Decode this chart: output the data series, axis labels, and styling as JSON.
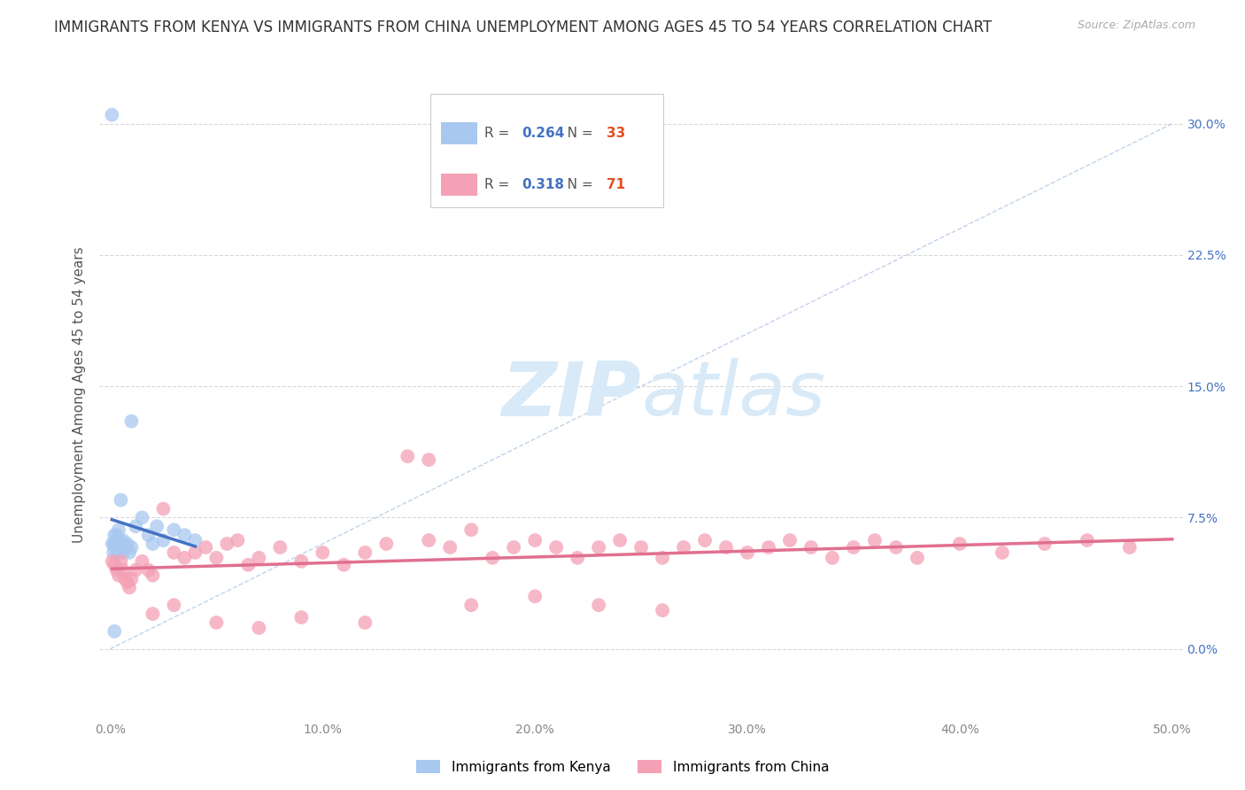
{
  "title": "IMMIGRANTS FROM KENYA VS IMMIGRANTS FROM CHINA UNEMPLOYMENT AMONG AGES 45 TO 54 YEARS CORRELATION CHART",
  "source": "Source: ZipAtlas.com",
  "ylabel": "Unemployment Among Ages 45 to 54 years",
  "xlim": [
    -0.005,
    0.505
  ],
  "ylim": [
    -0.04,
    0.33
  ],
  "xticks": [
    0.0,
    0.1,
    0.2,
    0.3,
    0.4,
    0.5
  ],
  "xticklabels": [
    "0.0%",
    "10.0%",
    "20.0%",
    "30.0%",
    "40.0%",
    "50.0%"
  ],
  "yticks": [
    0.0,
    0.075,
    0.15,
    0.225,
    0.3
  ],
  "yticklabels": [
    "0.0%",
    "7.5%",
    "15.0%",
    "22.5%",
    "30.0%"
  ],
  "kenya_R": 0.264,
  "kenya_N": 33,
  "china_R": 0.318,
  "china_N": 71,
  "kenya_color": "#a8c8f0",
  "kenya_line_color": "#4472c4",
  "china_color": "#f4a0b5",
  "china_line_color": "#e07090",
  "ref_line_color": "#b0c8e8",
  "tick_color_left": "#888888",
  "tick_color_right": "#4472c4",
  "background_color": "#ffffff",
  "grid_color": "#d8d8d8",
  "title_fontsize": 12,
  "axis_label_fontsize": 11,
  "tick_fontsize": 10,
  "legend_fontsize": 11,
  "watermark_color": "#d8eaf8",
  "kenya_x": [
    0.0008,
    0.001,
    0.0015,
    0.002,
    0.002,
    0.003,
    0.003,
    0.004,
    0.004,
    0.005,
    0.005,
    0.006,
    0.006,
    0.007,
    0.008,
    0.009,
    0.01,
    0.012,
    0.015,
    0.018,
    0.02,
    0.022,
    0.025,
    0.03,
    0.035,
    0.04,
    0.002,
    0.003,
    0.004,
    0.005,
    0.002,
    0.006,
    0.01
  ],
  "kenya_y": [
    0.305,
    0.06,
    0.055,
    0.06,
    0.01,
    0.065,
    0.058,
    0.062,
    0.068,
    0.085,
    0.058,
    0.055,
    0.062,
    0.058,
    0.06,
    0.055,
    0.13,
    0.07,
    0.075,
    0.065,
    0.06,
    0.07,
    0.062,
    0.068,
    0.065,
    0.062,
    0.06,
    0.055,
    0.06,
    0.06,
    0.065,
    0.058,
    0.058
  ],
  "china_x": [
    0.001,
    0.002,
    0.003,
    0.004,
    0.005,
    0.006,
    0.007,
    0.008,
    0.009,
    0.01,
    0.012,
    0.015,
    0.018,
    0.02,
    0.025,
    0.03,
    0.035,
    0.04,
    0.045,
    0.05,
    0.055,
    0.06,
    0.065,
    0.07,
    0.08,
    0.09,
    0.1,
    0.11,
    0.12,
    0.13,
    0.14,
    0.15,
    0.16,
    0.17,
    0.18,
    0.19,
    0.2,
    0.21,
    0.22,
    0.23,
    0.24,
    0.25,
    0.26,
    0.27,
    0.28,
    0.29,
    0.3,
    0.31,
    0.32,
    0.33,
    0.34,
    0.35,
    0.36,
    0.37,
    0.38,
    0.4,
    0.42,
    0.44,
    0.46,
    0.48,
    0.02,
    0.03,
    0.05,
    0.07,
    0.09,
    0.12,
    0.15,
    0.17,
    0.2,
    0.23,
    0.26
  ],
  "china_y": [
    0.05,
    0.048,
    0.045,
    0.042,
    0.05,
    0.045,
    0.04,
    0.038,
    0.035,
    0.04,
    0.045,
    0.05,
    0.045,
    0.042,
    0.08,
    0.055,
    0.052,
    0.055,
    0.058,
    0.052,
    0.06,
    0.062,
    0.048,
    0.052,
    0.058,
    0.05,
    0.055,
    0.048,
    0.055,
    0.06,
    0.11,
    0.062,
    0.058,
    0.068,
    0.052,
    0.058,
    0.062,
    0.058,
    0.052,
    0.058,
    0.062,
    0.058,
    0.052,
    0.058,
    0.062,
    0.058,
    0.055,
    0.058,
    0.062,
    0.058,
    0.052,
    0.058,
    0.062,
    0.058,
    0.052,
    0.06,
    0.055,
    0.06,
    0.062,
    0.058,
    0.02,
    0.025,
    0.015,
    0.012,
    0.018,
    0.015,
    0.108,
    0.025,
    0.03,
    0.025,
    0.022
  ]
}
